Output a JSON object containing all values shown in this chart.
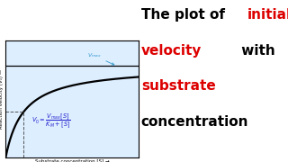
{
  "vmax": 1.0,
  "km": 0.3,
  "xlim": [
    0,
    2.2
  ],
  "ylim": [
    0,
    1.28
  ],
  "curve_color": "#000000",
  "hline_color": "#000000",
  "dashed_color": "#555555",
  "vmax_annot_color": "#3399cc",
  "equation_color": "#2222cc",
  "km_label_color": "#cc2222",
  "background_color": "#ffffff",
  "plot_bg": "#ddeeff",
  "title_line1_black": "The plot of ",
  "title_line1_red": "initial",
  "title_line2_red": "velocity",
  "title_line2_black": " with",
  "title_line3_red": "substrate",
  "title_line4_black": "concentration",
  "title_red": "#dd0000",
  "title_black": "#000000",
  "title_fontsize": 11,
  "xlabel": "Substrate concentration [S] →",
  "ylabel": "Reaction velocity (V₀) —",
  "xlabel_fontsize": 4.0,
  "ylabel_fontsize": 4.0
}
